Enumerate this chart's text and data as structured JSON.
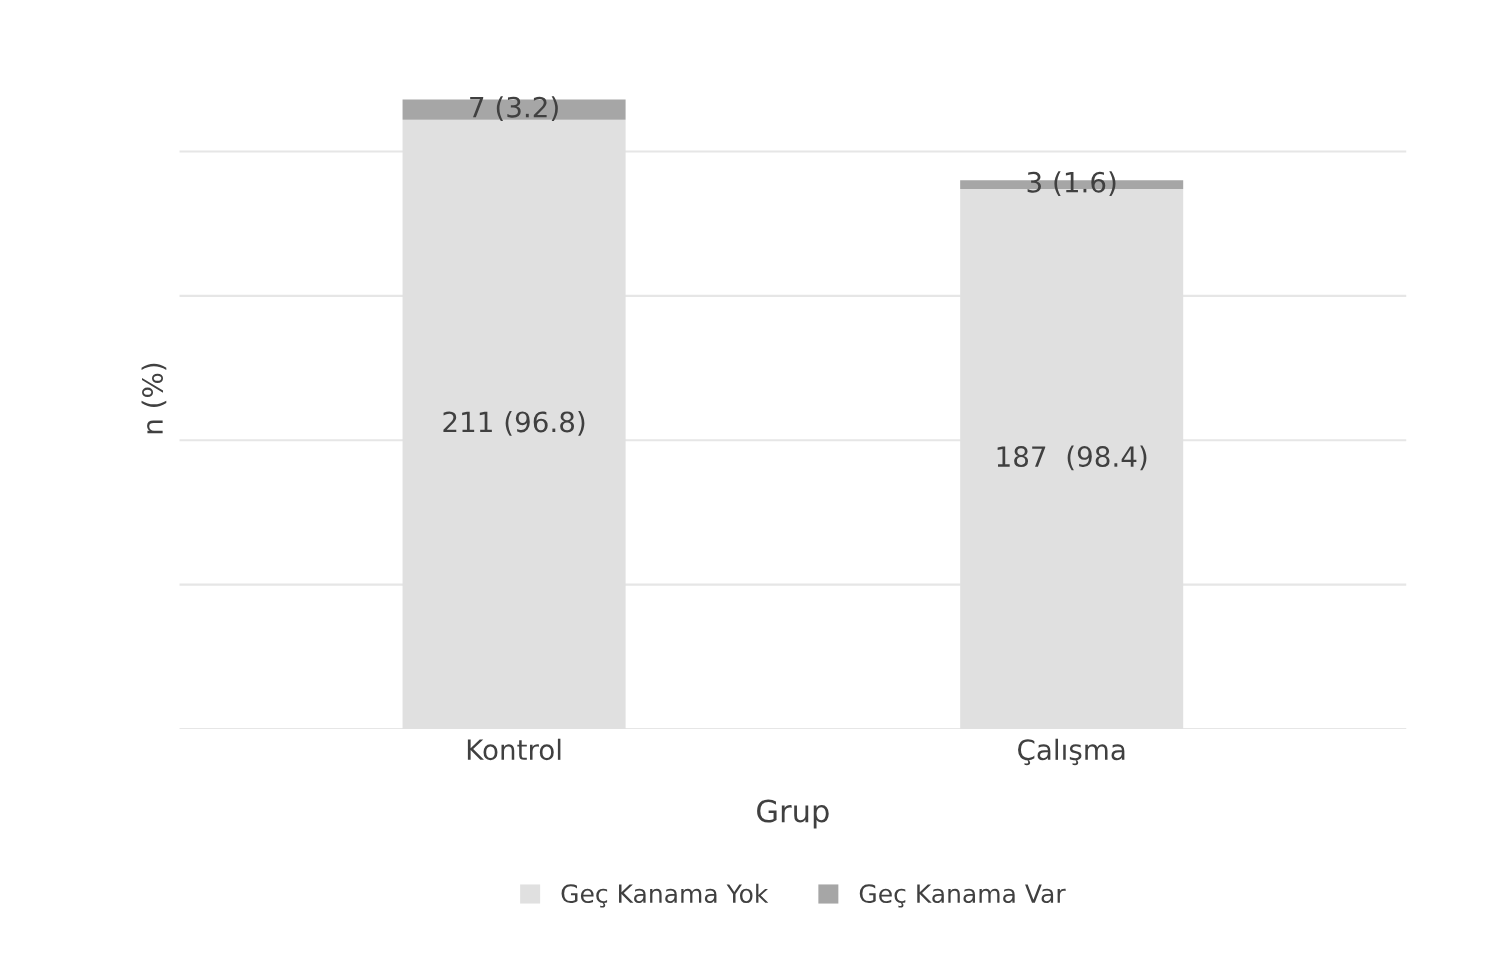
{
  "chart_data": {
    "type": "bar",
    "stacked": true,
    "xlabel": "Grup",
    "ylabel": "n (%)",
    "categories": [
      "Kontrol",
      "Çalışma"
    ],
    "series": [
      {
        "name": "Geç Kanama Yok",
        "color": "#e0e0e0",
        "values": [
          211,
          187
        ],
        "value_labels": [
          "211 (96.8)",
          "187  (98.4)"
        ]
      },
      {
        "name": "Geç Kanama Var",
        "color": "#a6a6a6",
        "values": [
          7,
          3
        ],
        "value_labels": [
          "7 (3.2)",
          "3 (1.6)"
        ]
      }
    ],
    "grid": "y",
    "legend": "bottom",
    "tick_labels": "x"
  }
}
